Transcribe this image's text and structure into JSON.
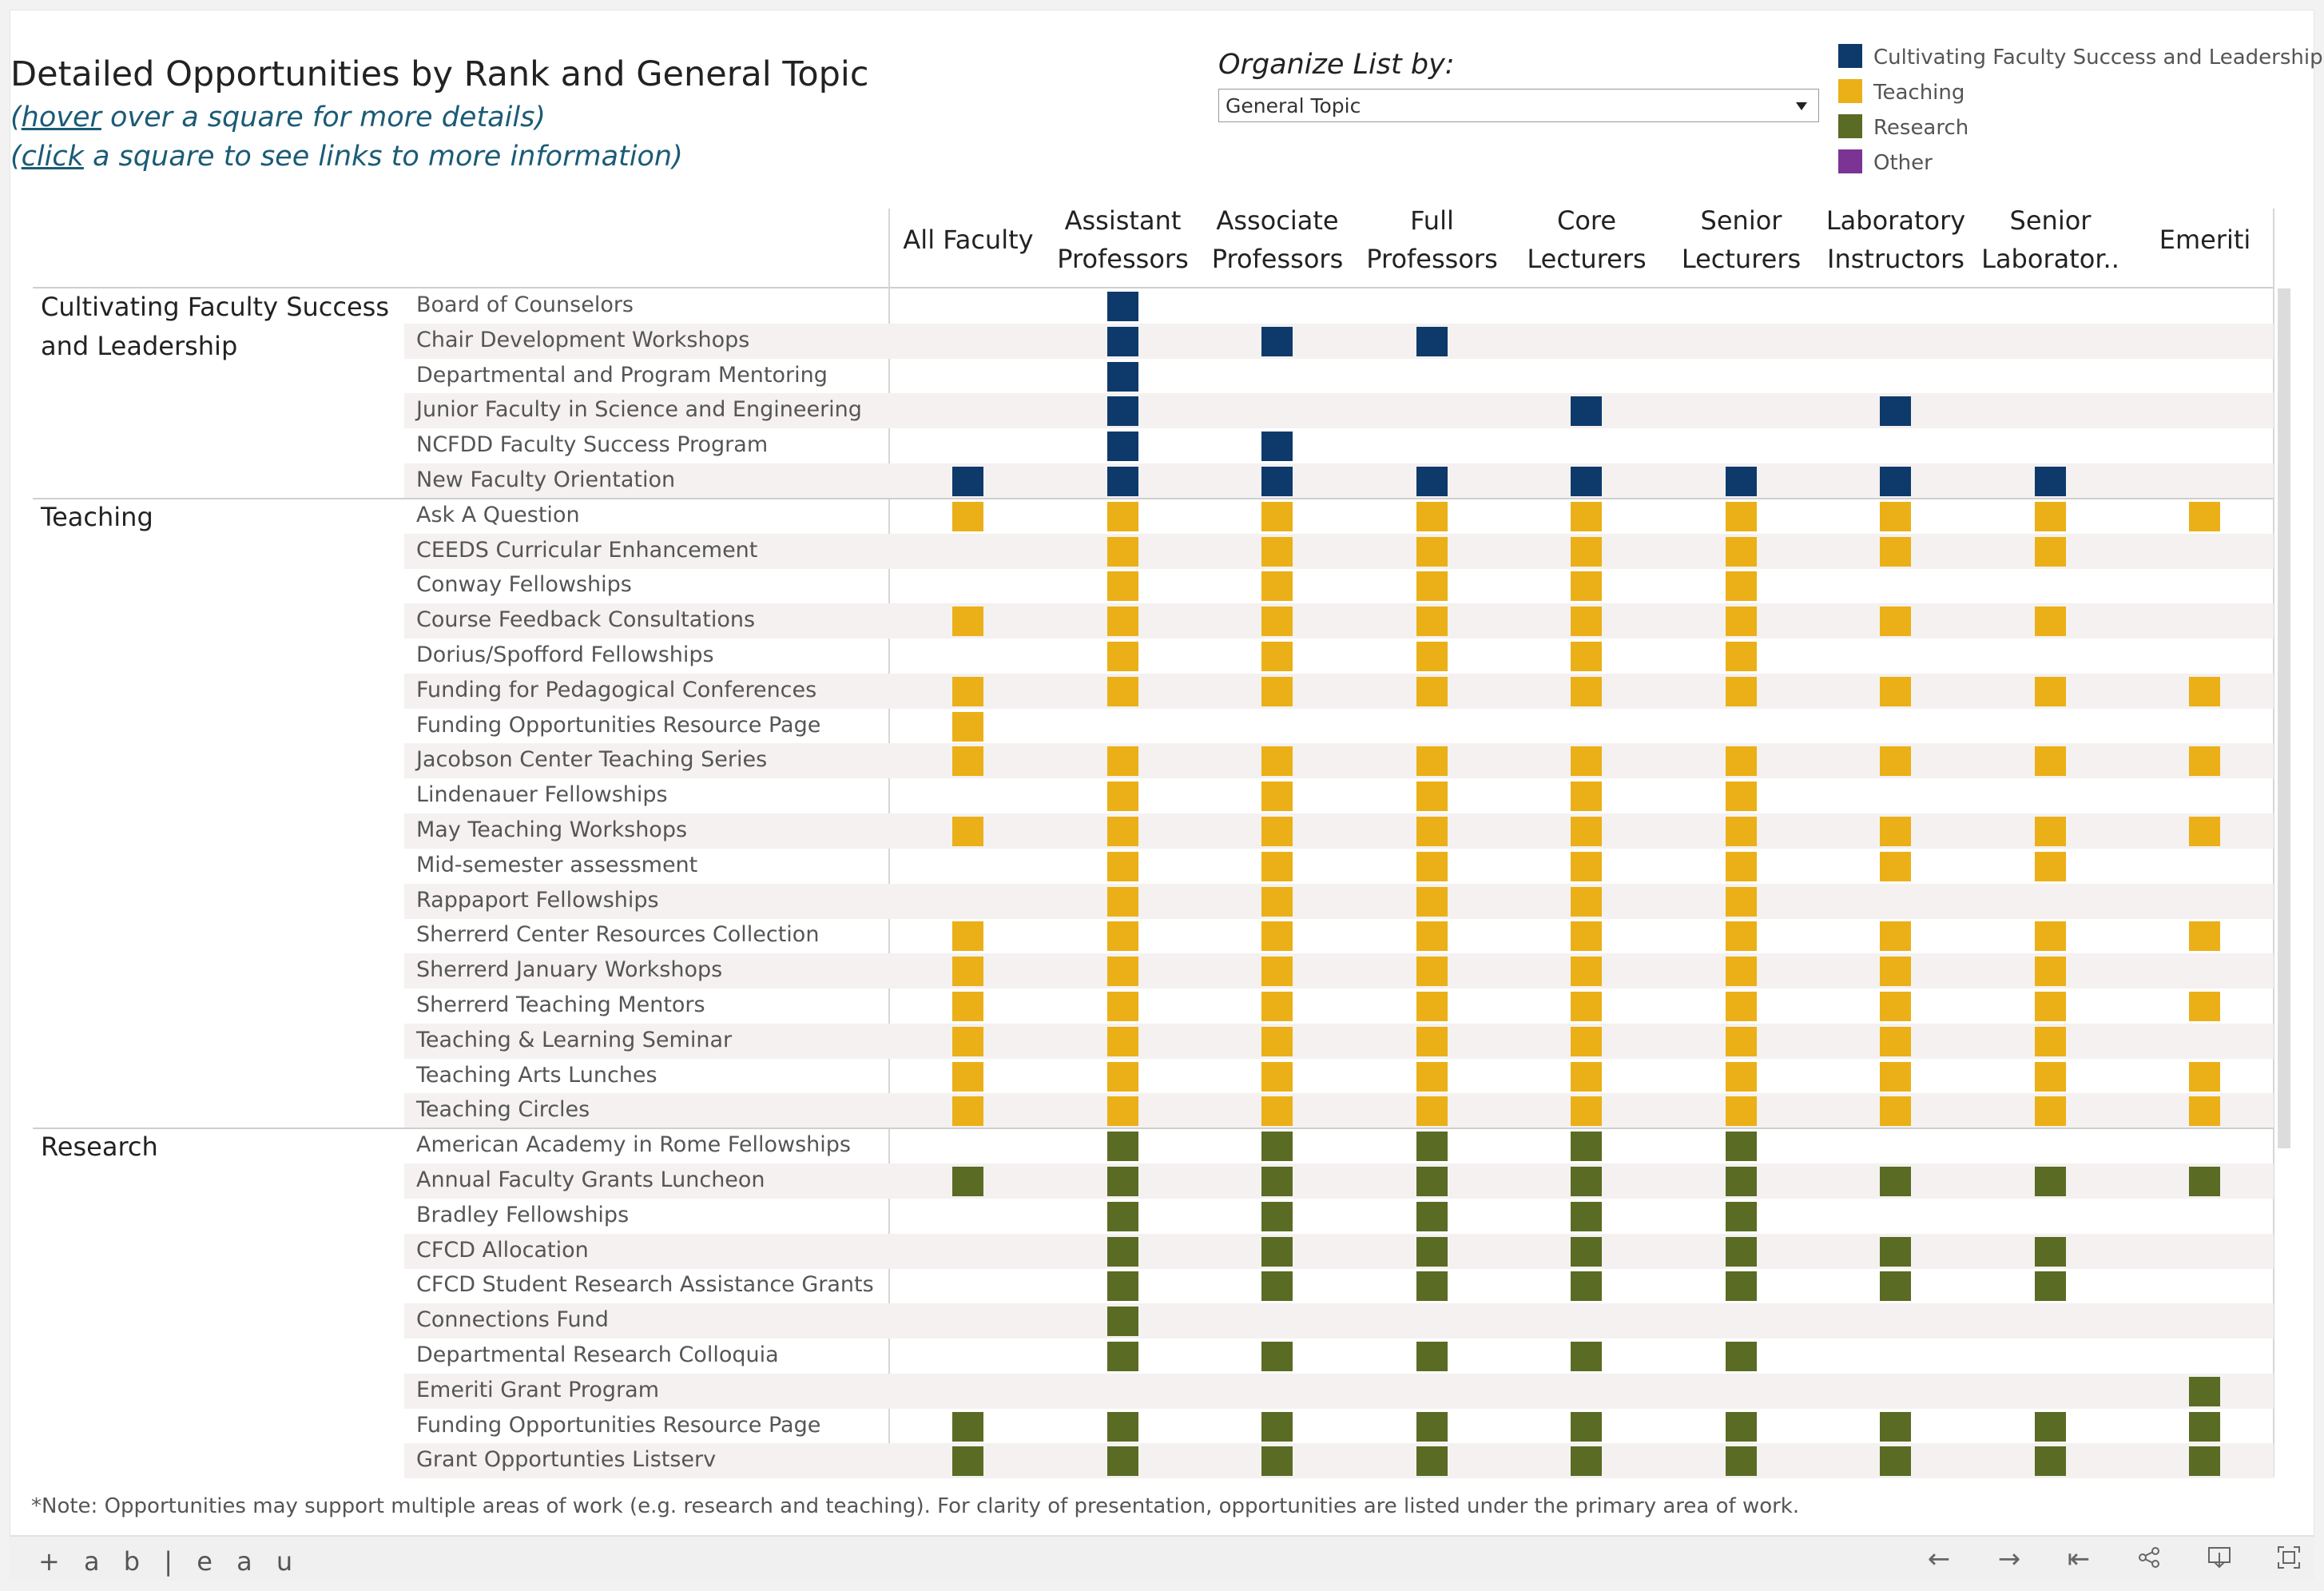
{
  "title": "Detailed Opportunities by Rank and General Topic",
  "hover_note": {
    "link": "hover",
    "rest": " over a square for more details)"
  },
  "click_note": {
    "link": "click",
    "rest": " a square to see links to more information)"
  },
  "organize": {
    "label": "Organize List by:",
    "value": "General Topic"
  },
  "legend": [
    {
      "label": "Cultivating Faculty Success and Leadership",
      "color": "#0e3a6b"
    },
    {
      "label": "Teaching",
      "color": "#ebb017"
    },
    {
      "label": "Research",
      "color": "#5a6b24"
    },
    {
      "label": "Other",
      "color": "#7b3494"
    }
  ],
  "columns": [
    "All Faculty",
    "Assistant Professors",
    "Associate Professors",
    "Full Professors",
    "Core Lecturers",
    "Senior Lecturers",
    "Laboratory Instructors",
    "Senior Laborator..",
    "Emeriti"
  ],
  "groups": [
    {
      "name": "Cultivating Faculty Success and Leadership",
      "color": "#0e3a6b",
      "rows": [
        {
          "label": "Board of Counselors",
          "cells": [
            0,
            1,
            0,
            0,
            0,
            0,
            0,
            0,
            0
          ]
        },
        {
          "label": "Chair Development Workshops",
          "cells": [
            0,
            1,
            1,
            1,
            0,
            0,
            0,
            0,
            0
          ]
        },
        {
          "label": "Departmental and Program Mentoring",
          "cells": [
            0,
            1,
            0,
            0,
            0,
            0,
            0,
            0,
            0
          ]
        },
        {
          "label": "Junior Faculty in Science and Engineering",
          "cells": [
            0,
            1,
            0,
            0,
            1,
            0,
            1,
            0,
            0
          ]
        },
        {
          "label": "NCFDD Faculty Success Program",
          "cells": [
            0,
            1,
            1,
            0,
            0,
            0,
            0,
            0,
            0
          ]
        },
        {
          "label": "New Faculty Orientation",
          "cells": [
            1,
            1,
            1,
            1,
            1,
            1,
            1,
            1,
            0
          ]
        }
      ]
    },
    {
      "name": "Teaching",
      "color": "#ebb017",
      "rows": [
        {
          "label": "Ask A Question",
          "cells": [
            1,
            1,
            1,
            1,
            1,
            1,
            1,
            1,
            1
          ]
        },
        {
          "label": "CEEDS Curricular Enhancement",
          "cells": [
            0,
            1,
            1,
            1,
            1,
            1,
            1,
            1,
            0
          ]
        },
        {
          "label": "Conway Fellowships",
          "cells": [
            0,
            1,
            1,
            1,
            1,
            1,
            0,
            0,
            0
          ]
        },
        {
          "label": "Course Feedback Consultations",
          "cells": [
            1,
            1,
            1,
            1,
            1,
            1,
            1,
            1,
            0
          ]
        },
        {
          "label": "Dorius/Spofford Fellowships",
          "cells": [
            0,
            1,
            1,
            1,
            1,
            1,
            0,
            0,
            0
          ]
        },
        {
          "label": "Funding for Pedagogical Conferences",
          "cells": [
            1,
            1,
            1,
            1,
            1,
            1,
            1,
            1,
            1
          ]
        },
        {
          "label": "Funding Opportunities Resource Page",
          "cells": [
            1,
            0,
            0,
            0,
            0,
            0,
            0,
            0,
            0
          ]
        },
        {
          "label": "Jacobson Center Teaching Series",
          "cells": [
            1,
            1,
            1,
            1,
            1,
            1,
            1,
            1,
            1
          ]
        },
        {
          "label": "Lindenauer Fellowships",
          "cells": [
            0,
            1,
            1,
            1,
            1,
            1,
            0,
            0,
            0
          ]
        },
        {
          "label": "May Teaching Workshops",
          "cells": [
            1,
            1,
            1,
            1,
            1,
            1,
            1,
            1,
            1
          ]
        },
        {
          "label": "Mid-semester assessment",
          "cells": [
            0,
            1,
            1,
            1,
            1,
            1,
            1,
            1,
            0
          ]
        },
        {
          "label": "Rappaport Fellowships",
          "cells": [
            0,
            1,
            1,
            1,
            1,
            1,
            0,
            0,
            0
          ]
        },
        {
          "label": "Sherrerd Center Resources Collection",
          "cells": [
            1,
            1,
            1,
            1,
            1,
            1,
            1,
            1,
            1
          ]
        },
        {
          "label": "Sherrerd January Workshops",
          "cells": [
            1,
            1,
            1,
            1,
            1,
            1,
            1,
            1,
            0
          ]
        },
        {
          "label": "Sherrerd Teaching Mentors",
          "cells": [
            1,
            1,
            1,
            1,
            1,
            1,
            1,
            1,
            1
          ]
        },
        {
          "label": "Teaching & Learning Seminar",
          "cells": [
            1,
            1,
            1,
            1,
            1,
            1,
            1,
            1,
            0
          ]
        },
        {
          "label": "Teaching Arts Lunches",
          "cells": [
            1,
            1,
            1,
            1,
            1,
            1,
            1,
            1,
            1
          ]
        },
        {
          "label": "Teaching Circles",
          "cells": [
            1,
            1,
            1,
            1,
            1,
            1,
            1,
            1,
            1
          ]
        }
      ]
    },
    {
      "name": "Research",
      "color": "#5a6b24",
      "rows": [
        {
          "label": "American Academy in Rome Fellowships",
          "cells": [
            0,
            1,
            1,
            1,
            1,
            1,
            0,
            0,
            0
          ]
        },
        {
          "label": "Annual Faculty Grants Luncheon",
          "cells": [
            1,
            1,
            1,
            1,
            1,
            1,
            1,
            1,
            1
          ]
        },
        {
          "label": "Bradley Fellowships",
          "cells": [
            0,
            1,
            1,
            1,
            1,
            1,
            0,
            0,
            0
          ]
        },
        {
          "label": "CFCD Allocation",
          "cells": [
            0,
            1,
            1,
            1,
            1,
            1,
            1,
            1,
            0
          ]
        },
        {
          "label": "CFCD Student Research Assistance Grants",
          "cells": [
            0,
            1,
            1,
            1,
            1,
            1,
            1,
            1,
            0
          ]
        },
        {
          "label": "Connections Fund",
          "cells": [
            0,
            1,
            0,
            0,
            0,
            0,
            0,
            0,
            0
          ]
        },
        {
          "label": "Departmental Research Colloquia",
          "cells": [
            0,
            1,
            1,
            1,
            1,
            1,
            0,
            0,
            0
          ]
        },
        {
          "label": "Emeriti Grant Program",
          "cells": [
            0,
            0,
            0,
            0,
            0,
            0,
            0,
            0,
            1
          ]
        },
        {
          "label": "Funding Opportunities Resource Page",
          "cells": [
            1,
            1,
            1,
            1,
            1,
            1,
            1,
            1,
            1
          ]
        },
        {
          "label": "Grant Opportunties Listserv",
          "cells": [
            1,
            1,
            1,
            1,
            1,
            1,
            1,
            1,
            1
          ]
        }
      ]
    }
  ],
  "footnote": "*Note: Opportunities may support multiple areas of work (e.g. research and teaching). For clarity of presentation, opportunities are listed under the primary area of work.",
  "branding": "+ a b | e a u",
  "toolbar": {
    "undo_icon": "arrow-left-icon",
    "redo_icon": "arrow-right-icon",
    "revert_icon": "revert-icon",
    "share_icon": "share-icon",
    "download_icon": "download-icon",
    "fullscreen_icon": "fullscreen-icon"
  }
}
